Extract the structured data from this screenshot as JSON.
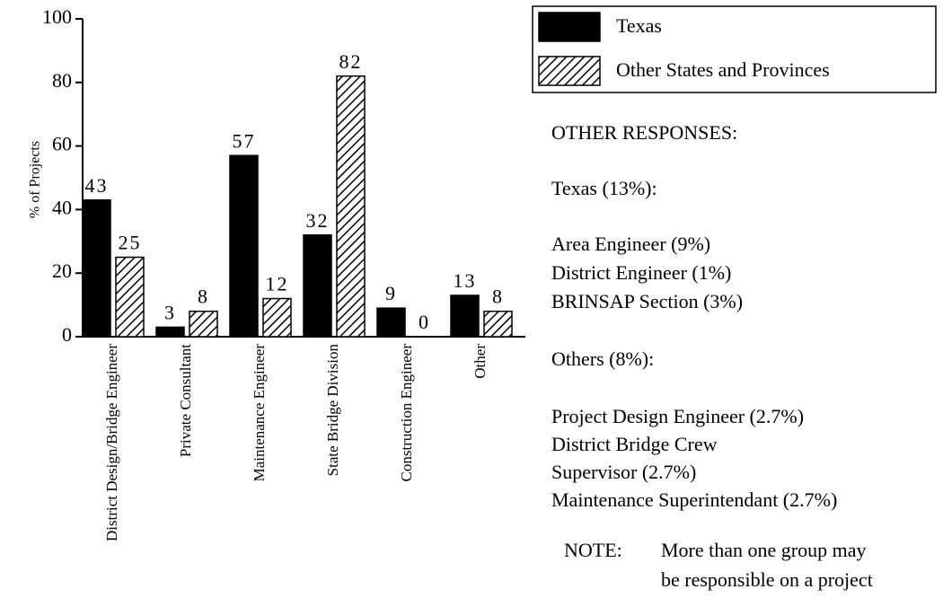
{
  "chart_data": {
    "type": "bar",
    "y_label": "% of Projects",
    "categories": [
      "District Design/Bridge Engineer",
      "Private Consultant",
      "Maintenance Engineer",
      "State Bridge Division",
      "Construction Engineer",
      "Other"
    ],
    "series": [
      {
        "name": "Texas",
        "color": "#000000",
        "pattern": "solid",
        "values": [
          43,
          3,
          57,
          32,
          9,
          13
        ]
      },
      {
        "name": "Other States and Provinces",
        "color": "#000000",
        "pattern": "hatch",
        "values": [
          25,
          8,
          12,
          82,
          0,
          8
        ]
      }
    ],
    "ylim": [
      0,
      100
    ],
    "yticks": [
      0,
      20,
      40,
      60,
      80,
      100
    ],
    "grid": false,
    "legend": "top-right"
  },
  "side_panel": {
    "heading": "OTHER RESPONSES:",
    "texas": {
      "title": "Texas (13%):",
      "items": [
        "Area Engineer (9%)",
        "District Engineer (1%)",
        "BRINSAP Section (3%)"
      ]
    },
    "others": {
      "title": "Others (8%):",
      "items": [
        "Project Design Engineer (2.7%)",
        "District Bridge Crew",
        "Supervisor (2.7%)",
        "Maintenance Superintendant (2.7%)"
      ]
    },
    "note": {
      "label": "NOTE:",
      "lines": [
        "More than one group may",
        "be responsible on a project"
      ]
    }
  }
}
